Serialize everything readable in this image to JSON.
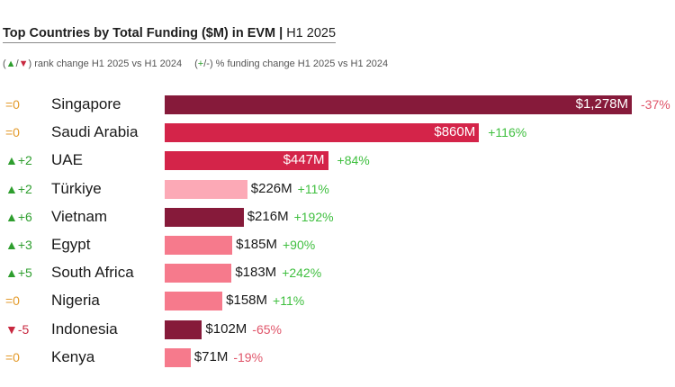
{
  "header": {
    "title": "Top Countries by Total Funding ($M) in EVM",
    "separator": "|",
    "period": "H1 2025",
    "legend_rank_open": "(",
    "legend_rank_up": "▲",
    "legend_rank_slash": "/",
    "legend_rank_down": "▼",
    "legend_rank_text": ") rank change H1 2025 vs H1 2024",
    "legend_pct_open": "(",
    "legend_pct_plus": "+",
    "legend_pct_text": "/-) % funding change H1 2025 vs H1 2024"
  },
  "chart_data": {
    "type": "bar",
    "orientation": "horizontal",
    "title": "Top Countries by Total Funding ($M) in EVM | H1 2025",
    "xlim": [
      0,
      1278
    ],
    "categories": [
      "Singapore",
      "Saudi Arabia",
      "UAE",
      "Türkiye",
      "Vietnam",
      "Egypt",
      "South Africa",
      "Nigeria",
      "Indonesia",
      "Kenya"
    ],
    "values": [
      1278,
      860,
      447,
      226,
      216,
      185,
      183,
      158,
      102,
      71
    ],
    "value_labels": [
      "$1,278M",
      "$860M",
      "$447M",
      "$226M",
      "$216M",
      "$185M",
      "$183M",
      "$158M",
      "$102M",
      "$71M"
    ],
    "rank_change_labels": [
      "=0",
      "=0",
      "▲+2",
      "▲+2",
      "▲+6",
      "▲+3",
      "▲+5",
      "=0",
      "▼-5",
      "=0"
    ],
    "rank_change_direction": [
      "same",
      "same",
      "up",
      "up",
      "up",
      "up",
      "up",
      "same",
      "down",
      "same"
    ],
    "pct_change_labels": [
      "-37%",
      "+116%",
      "+84%",
      "+11%",
      "+192%",
      "+90%",
      "+242%",
      "+11%",
      "-65%",
      "-19%"
    ],
    "bar_colors": [
      "#861a3a",
      "#d42449",
      "#d42449",
      "#fca9b6",
      "#861a3a",
      "#f67a8c",
      "#f67a8c",
      "#f67a8c",
      "#861a3a",
      "#f67a8c"
    ],
    "label_inside": [
      true,
      true,
      true,
      false,
      false,
      false,
      false,
      false,
      false,
      false
    ],
    "colors": {
      "rank_same": "#e39a2b",
      "rank_up": "#2e9e2e",
      "rank_down": "#c8283f",
      "pct_pos": "#3fbf3f",
      "pct_neg": "#e0556a"
    }
  }
}
